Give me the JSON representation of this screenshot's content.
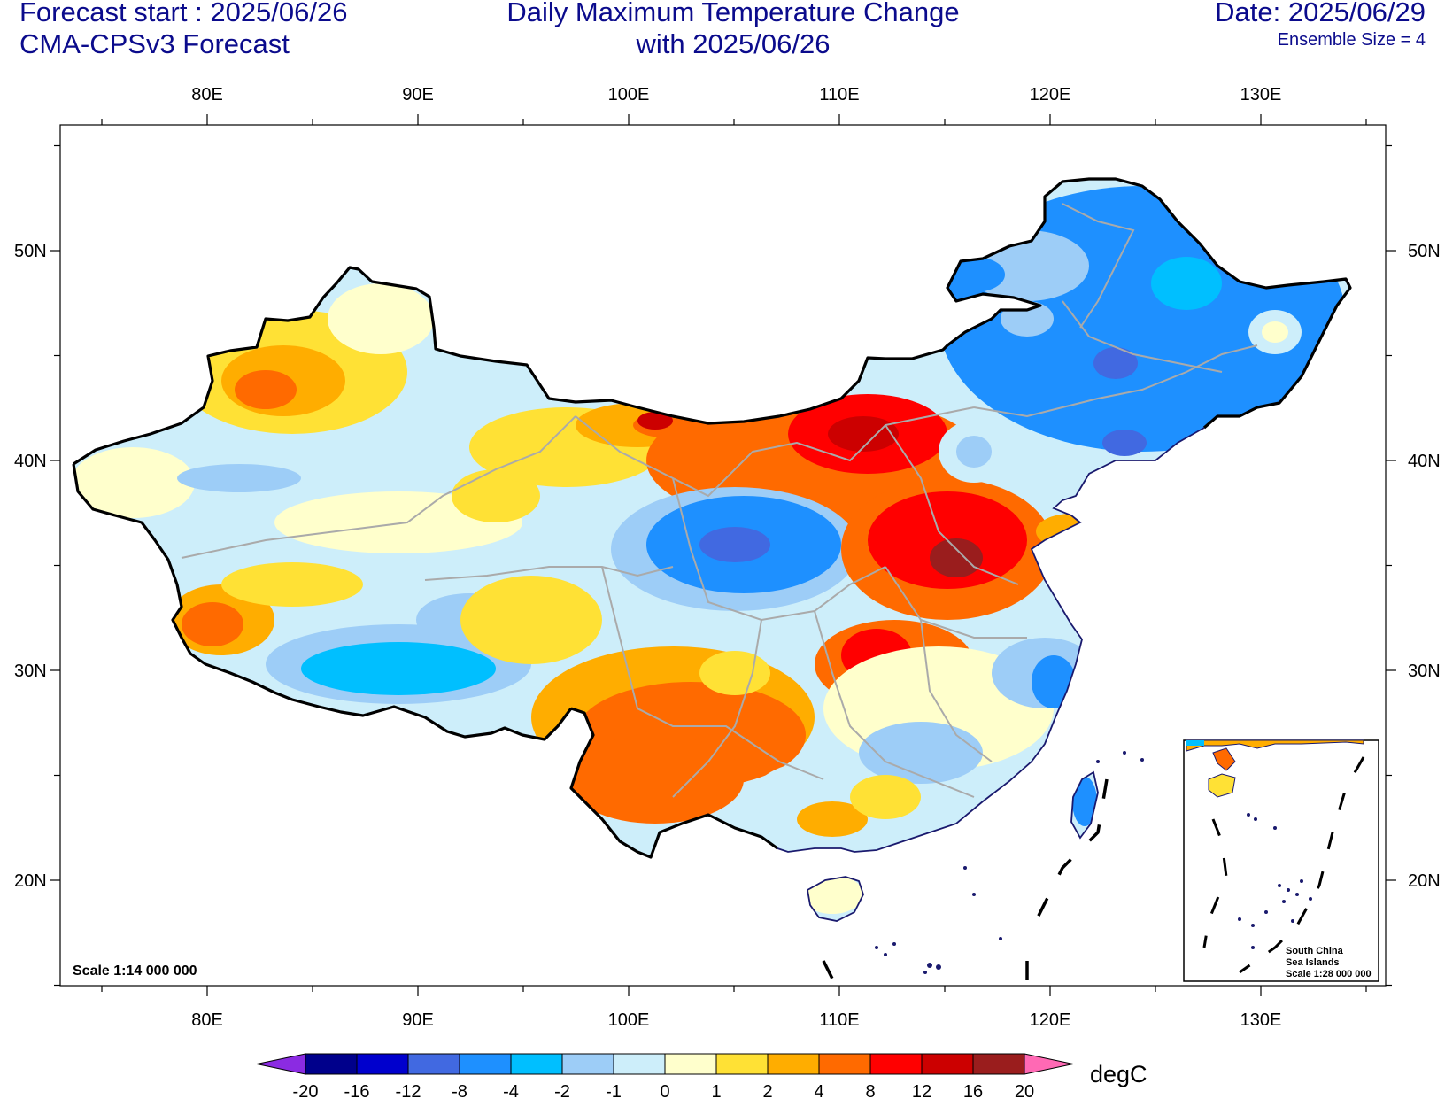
{
  "header": {
    "forecast_start": "Forecast start : 2025/06/26",
    "model": "CMA-CPSv3 Forecast",
    "title_line1": "Daily Maximum Temperature Change",
    "title_line2": "with 2025/06/26",
    "date": "Date: 2025/06/29",
    "ensemble": "Ensemble Size = 4"
  },
  "axes": {
    "lon_labels": [
      "80E",
      "90E",
      "100E",
      "110E",
      "120E",
      "130E"
    ],
    "lat_labels": [
      "50N",
      "40N",
      "30N",
      "20N"
    ]
  },
  "map": {
    "scale_label": "Scale 1:14 000 000",
    "inset_label_1": "South China",
    "inset_label_2": "Sea Islands",
    "inset_label_3": "Scale 1:28 000 000"
  },
  "colorbar": {
    "unit": "degC",
    "ticks": [
      "-20",
      "-16",
      "-12",
      "-8",
      "-4",
      "-2",
      "-1",
      "0",
      "1",
      "2",
      "4",
      "8",
      "12",
      "16",
      "20"
    ],
    "colors": [
      "#8b2be2",
      "#00008b",
      "#0000cd",
      "#4169e1",
      "#1e90ff",
      "#00bfff",
      "#9dcdf7",
      "#cdeefa",
      "#ffffcc",
      "#ffe135",
      "#ffad00",
      "#ff6a00",
      "#ff0000",
      "#cc0000",
      "#9a1d1d",
      "#ff69b4"
    ]
  }
}
